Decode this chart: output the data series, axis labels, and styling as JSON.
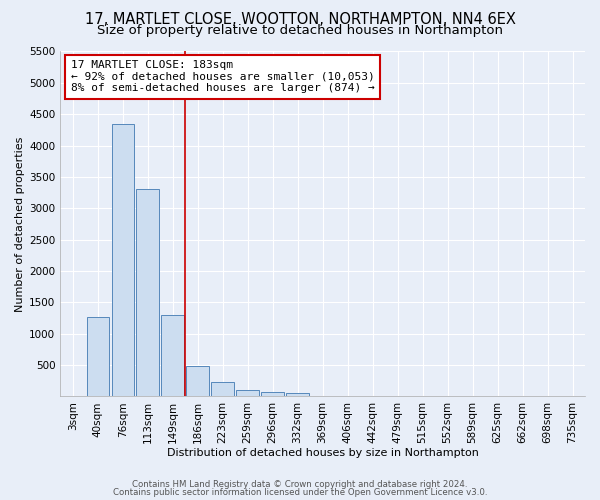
{
  "title": "17, MARTLET CLOSE, WOOTTON, NORTHAMPTON, NN4 6EX",
  "subtitle": "Size of property relative to detached houses in Northampton",
  "xlabel": "Distribution of detached houses by size in Northampton",
  "ylabel": "Number of detached properties",
  "categories": [
    "3sqm",
    "40sqm",
    "76sqm",
    "113sqm",
    "149sqm",
    "186sqm",
    "223sqm",
    "259sqm",
    "296sqm",
    "332sqm",
    "369sqm",
    "406sqm",
    "442sqm",
    "479sqm",
    "515sqm",
    "552sqm",
    "589sqm",
    "625sqm",
    "662sqm",
    "698sqm",
    "735sqm"
  ],
  "values": [
    0,
    1270,
    4350,
    3300,
    1300,
    480,
    230,
    95,
    65,
    50,
    0,
    0,
    0,
    0,
    0,
    0,
    0,
    0,
    0,
    0,
    0
  ],
  "bar_color": "#ccddf0",
  "bar_edge_color": "#5588bb",
  "property_line_index": 5,
  "annotation_title": "17 MARTLET CLOSE: 183sqm",
  "annotation_line1": "← 92% of detached houses are smaller (10,053)",
  "annotation_line2": "8% of semi-detached houses are larger (874) →",
  "annotation_box_color": "#cc0000",
  "ylim": [
    0,
    5500
  ],
  "yticks": [
    0,
    500,
    1000,
    1500,
    2000,
    2500,
    3000,
    3500,
    4000,
    4500,
    5000,
    5500
  ],
  "background_color": "#e8eef8",
  "grid_color": "#ffffff",
  "title_fontsize": 10.5,
  "subtitle_fontsize": 9.5,
  "axis_fontsize": 8,
  "tick_fontsize": 7.5,
  "footer_line1": "Contains HM Land Registry data © Crown copyright and database right 2024.",
  "footer_line2": "Contains public sector information licensed under the Open Government Licence v3.0."
}
